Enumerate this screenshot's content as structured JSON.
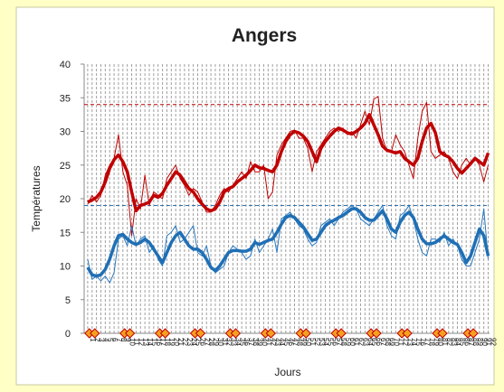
{
  "chart_data": {
    "type": "line",
    "title": "Angers",
    "y_label": "Températures",
    "x_label": "Jours",
    "x": [
      1,
      2,
      3,
      4,
      5,
      6,
      7,
      8,
      9,
      10,
      11,
      12,
      13,
      14,
      15,
      16,
      17,
      18,
      19,
      20,
      21,
      22,
      23,
      24,
      25,
      26,
      27,
      28,
      29,
      30,
      31,
      32,
      33,
      34,
      35,
      36,
      37,
      38,
      39,
      40,
      41,
      42,
      43,
      44,
      45,
      46,
      47,
      48,
      49,
      50,
      51,
      52,
      53,
      54,
      55,
      56,
      57,
      58,
      59,
      60,
      61,
      62,
      63,
      64,
      65,
      66,
      67,
      68,
      69,
      70,
      71,
      72,
      73,
      74,
      75,
      76,
      77,
      78,
      79,
      80,
      81,
      82,
      83,
      84,
      85,
      86,
      87,
      88,
      89,
      90,
      91,
      92
    ],
    "xlim": [
      0.2,
      92.3
    ],
    "ylim": [
      0,
      40
    ],
    "yticks": [
      0,
      5,
      10,
      15,
      20,
      25,
      30,
      35,
      40
    ],
    "grid": true,
    "series": [
      {
        "color": "#c00000",
        "width": 1,
        "values": [
          19.2,
          20.5,
          19.5,
          20.5,
          23.5,
          25,
          26,
          29.5,
          24,
          22,
          14.5,
          20,
          18.5,
          23.5,
          19,
          21,
          20.5,
          20,
          23,
          24,
          25,
          23,
          22,
          20.5,
          21.5,
          21,
          19.5,
          18,
          18,
          19,
          20.5,
          21.5,
          21,
          22,
          23,
          24,
          23,
          25.5,
          24,
          24,
          25,
          20,
          21,
          26.5,
          28,
          29,
          30,
          30.2,
          29,
          29,
          27.5,
          24,
          27,
          28,
          29,
          30,
          30.5,
          30,
          30.5,
          29.5,
          30,
          29,
          31,
          33,
          31,
          34.8,
          35.2,
          29,
          27,
          27,
          29.5,
          28,
          27,
          25,
          23,
          29,
          33,
          34.3,
          27,
          26,
          26.5,
          27,
          26,
          24,
          23,
          25,
          26,
          25,
          26,
          25,
          22.5,
          25
        ]
      },
      {
        "color": "#c00000",
        "width": 3.5,
        "values": [
          19.5,
          19.8,
          20.2,
          21,
          22.5,
          24.5,
          25.8,
          26.5,
          25.5,
          24,
          21,
          18.2,
          19,
          19.2,
          19.5,
          20.5,
          20.2,
          20.8,
          22,
          23,
          24,
          23.5,
          22.5,
          21.5,
          21,
          20,
          19.2,
          18.5,
          18.2,
          18.5,
          19.5,
          21,
          21.5,
          21.8,
          22.5,
          23,
          23.5,
          24.2,
          25,
          24.6,
          24.5,
          24.2,
          24,
          25,
          27,
          28.5,
          29.5,
          30,
          29.8,
          29.3,
          28.5,
          27,
          25.5,
          27.5,
          28.5,
          29.3,
          30,
          30.5,
          30.2,
          29.8,
          29.6,
          30,
          30.5,
          31.2,
          32.5,
          31,
          29.5,
          27.8,
          27.2,
          27,
          26.8,
          27,
          26,
          25.5,
          25,
          26,
          28.5,
          30.5,
          31.2,
          29.8,
          27,
          26.5,
          26.2,
          25.5,
          24.5,
          23.8,
          24.5,
          25.2,
          26,
          25.5,
          25,
          26.8
        ]
      },
      {
        "color": "#2878c0",
        "width": 1,
        "values": [
          11,
          8,
          8.5,
          7.8,
          8.5,
          7.5,
          9,
          14,
          14.5,
          13,
          16,
          13,
          14,
          14.5,
          12,
          13,
          11,
          10,
          14.5,
          15,
          16,
          13.5,
          14,
          15,
          16,
          12,
          11.5,
          13,
          10,
          9,
          9.5,
          10,
          12,
          13,
          12.5,
          12,
          11,
          11.5,
          14,
          12,
          13,
          14,
          15.5,
          12,
          17,
          17.5,
          18,
          17,
          16,
          15.5,
          14,
          13,
          13.5,
          16,
          16.5,
          17,
          16,
          17,
          18,
          18.5,
          19,
          18.5,
          17,
          16.5,
          16,
          17,
          18,
          19,
          16,
          14.5,
          14,
          17.5,
          18,
          19,
          17,
          14,
          12,
          11.5,
          14,
          14,
          13.5,
          15,
          13,
          14,
          13,
          11,
          10,
          10,
          12,
          14,
          18.5,
          11
        ]
      },
      {
        "color": "#1f6fb5",
        "width": 3.5,
        "values": [
          9.8,
          8.7,
          8.5,
          8.7,
          9.5,
          11,
          13,
          14.5,
          14.7,
          14,
          13.5,
          13.2,
          13.5,
          14,
          13.5,
          12.5,
          11.5,
          10.5,
          12,
          13.5,
          14.5,
          15,
          14,
          13,
          12.5,
          12.5,
          12,
          11,
          9.8,
          9.3,
          10,
          11,
          12,
          12.3,
          12.3,
          12.2,
          12.2,
          12.5,
          13.5,
          13.2,
          13.5,
          13.8,
          14,
          15,
          16.2,
          17.2,
          17.5,
          17.2,
          16.5,
          15.8,
          14.8,
          13.8,
          14,
          15,
          16,
          16.5,
          16.8,
          17.2,
          17.5,
          18,
          18.5,
          18.5,
          18,
          17.2,
          16.8,
          16.8,
          17.5,
          18.2,
          17,
          15.5,
          15,
          16.5,
          17.5,
          18,
          17.2,
          15.5,
          14,
          13.3,
          13.3,
          13.5,
          14,
          14.5,
          14,
          13.5,
          13.2,
          12,
          10.5,
          11.5,
          13.5,
          15.5,
          14.5,
          11.5
        ]
      }
    ],
    "reference_lines": [
      {
        "value": 34,
        "color": "#c00000"
      },
      {
        "value": 19,
        "color": "#2e75b6"
      }
    ],
    "markers": {
      "x": [
        2,
        10,
        18,
        26,
        34,
        42,
        50,
        58,
        66,
        73,
        81,
        88
      ],
      "values": [
        0,
        0,
        0,
        0,
        0,
        0,
        0,
        0,
        0,
        0,
        0,
        0
      ],
      "color": "#f4a020"
    }
  }
}
